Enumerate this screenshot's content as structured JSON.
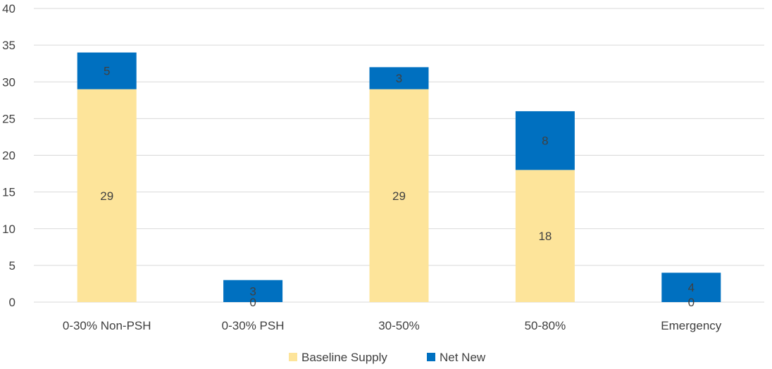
{
  "chart_data": {
    "type": "bar",
    "stacked": true,
    "categories": [
      "0-30% Non-PSH",
      "0-30% PSH",
      "30-50%",
      "50-80%",
      "Emergency"
    ],
    "series": [
      {
        "name": "Baseline Supply",
        "values": [
          29,
          0,
          29,
          18,
          0
        ],
        "color": "#FDE49A"
      },
      {
        "name": "Net New",
        "values": [
          5,
          3,
          3,
          8,
          4
        ],
        "color": "#0070C0"
      }
    ],
    "ylim": [
      0,
      40
    ],
    "yticks": [
      "0",
      "5",
      "10",
      "15",
      "20",
      "25",
      "30",
      "35",
      "40"
    ],
    "grid": true,
    "legend": "bottom",
    "data_labels": true
  }
}
